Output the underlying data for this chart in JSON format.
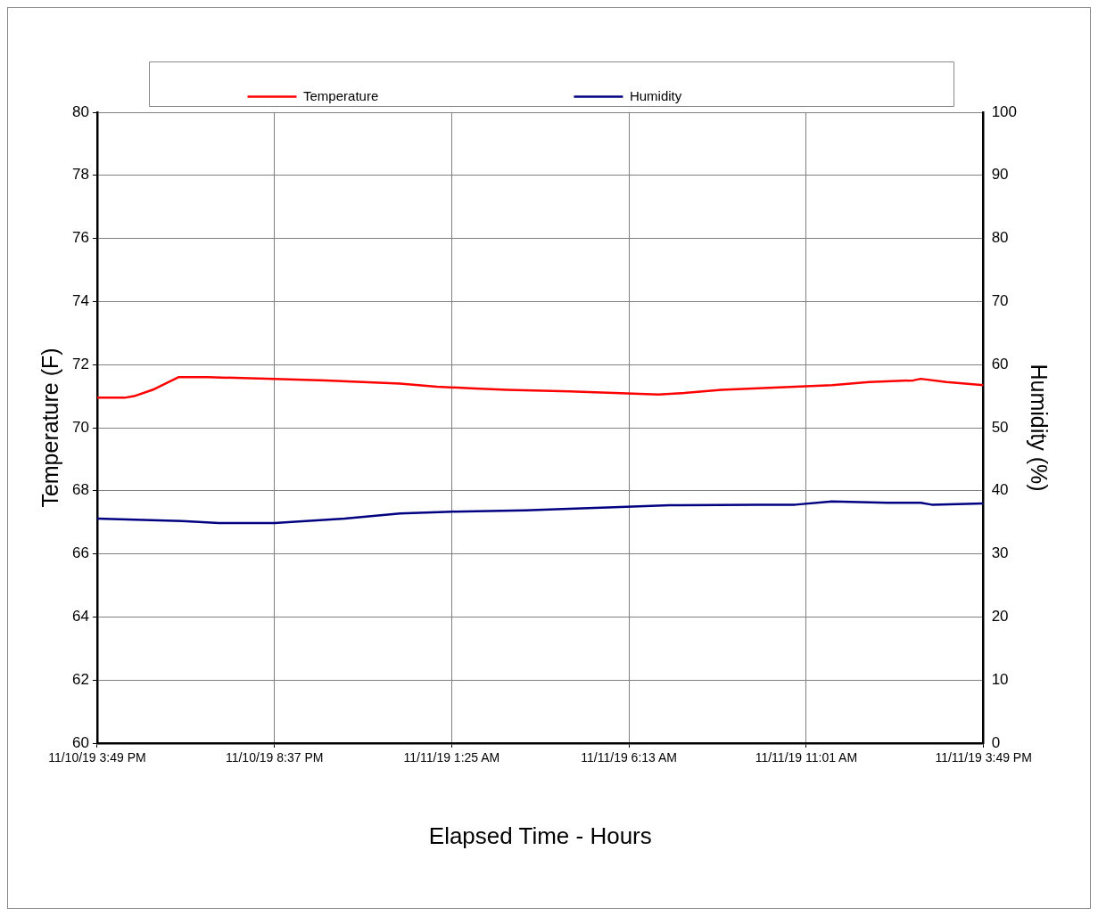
{
  "chart_data": {
    "type": "line",
    "xlabel": "Elapsed Time - Hours",
    "ylabel": "Temperature (F)",
    "y2label": "Humidity (%)",
    "xlim": [
      "--11-10T15:49",
      "--11-11T15:49"
    ],
    "xticks": [
      {
        "value": "--11-10T15:49",
        "label": "11/10/19 3:49 PM"
      },
      {
        "value": "--11-10T20:37",
        "label": "11/10/19 8:37 PM"
      },
      {
        "value": "--11-11T01:25",
        "label": "11/11/19 1:25 AM"
      },
      {
        "value": "--11-11T06:13",
        "label": "11/11/19 6:13 AM"
      },
      {
        "value": "--11-11T11:01",
        "label": "11/11/19 11:01 AM"
      },
      {
        "value": "--11-11T15:49",
        "label": "11/11/19 3:49 PM"
      }
    ],
    "ylim": [
      60,
      80
    ],
    "yticks": [
      60,
      62,
      64,
      66,
      68,
      70,
      72,
      74,
      76,
      78,
      80
    ],
    "y2lim": [
      0,
      100
    ],
    "y2ticks": [
      0,
      10,
      20,
      30,
      40,
      50,
      60,
      70,
      80,
      90,
      100
    ],
    "grid": true,
    "legend": "top",
    "marker": "none",
    "line_style": "solid",
    "series": [
      {
        "name": "Temperature",
        "color": "#ff0000",
        "x": [
          "--11-10T15:49",
          "--11-10T16:34",
          "--11-10T16:49",
          "--11-10T17:19",
          "--11-10T18:01",
          "--11-10T18:49",
          "--11-10T20:37",
          "--11-10T22:01",
          "--11-10T23:01",
          "--11-11T00:01",
          "--11-11T01:01",
          "--11-11T01:55",
          "--11-11T02:55",
          "--11-11T04:37",
          "--11-11T05:49",
          "--11-11T07:01",
          "--11-11T07:43",
          "--11-11T08:43",
          "--11-11T09:43",
          "--11-11T10:43",
          "--11-11T11:43",
          "--11-11T12:43",
          "--11-11T13:55",
          "--11-11T14:07",
          "--11-11T14:49",
          "--11-11T15:49"
        ],
        "values": [
          70.95,
          70.95,
          71.0,
          71.2,
          71.6,
          71.6,
          71.55,
          71.5,
          71.45,
          71.4,
          71.3,
          71.25,
          71.2,
          71.15,
          71.1,
          71.05,
          71.1,
          71.2,
          71.25,
          71.3,
          71.35,
          71.45,
          71.5,
          71.55,
          71.45,
          71.35
        ]
      },
      {
        "name": "Humidity",
        "color": "#000080",
        "axis": "y2",
        "x": [
          "--11-10T15:49",
          "--11-10T18:07",
          "--11-10T19:07",
          "--11-10T20:37",
          "--11-10T22:31",
          "--11-11T00:01",
          "--11-11T01:25",
          "--11-11T03:25",
          "--11-11T04:25",
          "--11-11T05:49",
          "--11-11T07:19",
          "--11-11T09:43",
          "--11-11T10:43",
          "--11-11T11:43",
          "--11-11T13:13",
          "--11-11T14:07",
          "--11-11T14:25",
          "--11-11T15:49"
        ],
        "values": [
          35.6,
          35.2,
          34.9,
          34.9,
          35.6,
          36.4,
          36.7,
          36.9,
          37.1,
          37.4,
          37.7,
          37.8,
          37.8,
          38.3,
          38.1,
          38.1,
          37.8,
          38.0
        ]
      }
    ]
  }
}
